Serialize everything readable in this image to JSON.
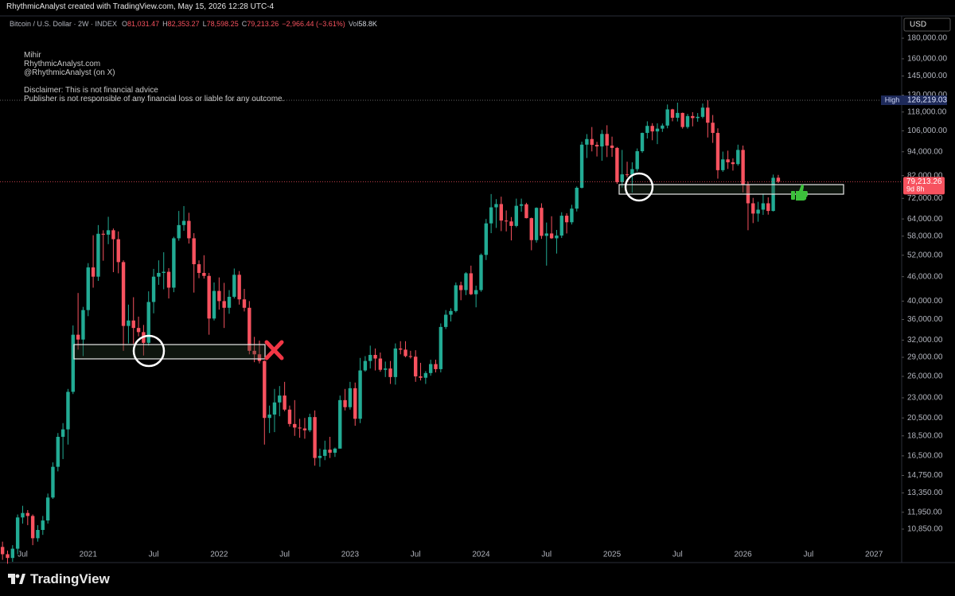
{
  "header": "RhythmicAnalyst created with TradingView.com, May 15, 2026 12:28 UTC-4",
  "chart_data": {
    "type": "candlestick",
    "symbol": "Bitcoin / U.S. Dollar · 2W · INDEX",
    "ohlc": [
      {
        "key": "O",
        "value": "81,031.47"
      },
      {
        "key": "H",
        "value": "82,353.27"
      },
      {
        "key": "L",
        "value": "78,598.25"
      },
      {
        "key": "C",
        "value": "79,213.26"
      }
    ],
    "change": "−2,966.44 (−3.61%)",
    "volume": {
      "key": "Vol",
      "value": "58.8K"
    },
    "author": [
      "Mihir",
      "RhythmicAnalyst.com",
      "@RhythmicAnalyst (on X)"
    ],
    "disclaimer": [
      "Disclaimer: This is not financial advice",
      "Publisher is not responsible of any financial loss or liable for any outcome."
    ],
    "currency": "USD",
    "up_color": "#22ab94",
    "down_color": "#f7525f",
    "log_scale": true,
    "ylim": [
      9770,
      204500
    ],
    "yticks": [
      {
        "value": 180000,
        "label": "180,000.00"
      },
      {
        "value": 160000,
        "label": "160,000.00"
      },
      {
        "value": 145000,
        "label": "145,000.00"
      },
      {
        "value": 130000,
        "label": "130,000.00"
      },
      {
        "value": 118000,
        "label": "118,000.00"
      },
      {
        "value": 106000,
        "label": "106,000.00"
      },
      {
        "value": 94000,
        "label": "94,000.00"
      },
      {
        "value": 82000,
        "label": "82,000.00"
      },
      {
        "value": 72000,
        "label": "72,000.00"
      },
      {
        "value": 64000,
        "label": "64,000.00"
      },
      {
        "value": 58000,
        "label": "58,000.00"
      },
      {
        "value": 52000,
        "label": "52,000.00"
      },
      {
        "value": 46000,
        "label": "46,000.00"
      },
      {
        "value": 40000,
        "label": "40,000.00"
      },
      {
        "value": 36000,
        "label": "36,000.00"
      },
      {
        "value": 32000,
        "label": "32,000.00"
      },
      {
        "value": 29000,
        "label": "29,000.00"
      },
      {
        "value": 26000,
        "label": "26,000.00"
      },
      {
        "value": 23000,
        "label": "23,000.00"
      },
      {
        "value": 20500,
        "label": "20,500.00"
      },
      {
        "value": 18500,
        "label": "18,500.00"
      },
      {
        "value": 16500,
        "label": "16,500.00"
      },
      {
        "value": 14750,
        "label": "14,750.00"
      },
      {
        "value": 13350,
        "label": "13,350.00"
      },
      {
        "value": 11950,
        "label": "11,950.00"
      },
      {
        "value": 10850,
        "label": "10,850.00"
      }
    ],
    "high_marker": {
      "label": "High",
      "value_label": "126,219.03"
    },
    "last_price": {
      "value_label": "79,213.26",
      "countdown": "9d 8h"
    },
    "categories": [
      null,
      null,
      null,
      null,
      "Jul",
      null,
      null,
      null,
      null,
      null,
      null,
      null,
      null,
      null,
      null,
      null,
      null,
      "2021",
      null,
      null,
      null,
      null,
      null,
      null,
      null,
      null,
      null,
      null,
      null,
      null,
      "Jul",
      null,
      null,
      null,
      null,
      null,
      null,
      null,
      null,
      null,
      null,
      null,
      null,
      "2022",
      null,
      null,
      null,
      null,
      null,
      null,
      null,
      null,
      null,
      null,
      null,
      null,
      "Jul",
      null,
      null,
      null,
      null,
      null,
      null,
      null,
      null,
      null,
      null,
      null,
      null,
      "2023",
      null,
      null,
      null,
      null,
      null,
      null,
      null,
      null,
      null,
      null,
      null,
      null,
      "Jul",
      null,
      null,
      null,
      null,
      null,
      null,
      null,
      null,
      null,
      null,
      null,
      null,
      "2024",
      null,
      null,
      null,
      null,
      null,
      null,
      null,
      null,
      null,
      null,
      null,
      null,
      "Jul",
      null,
      null,
      null,
      null,
      null,
      null,
      null,
      null,
      null,
      null,
      null,
      null,
      "2025",
      null,
      null,
      null,
      null,
      null,
      null,
      null,
      null,
      null,
      null,
      null,
      null,
      "Jul",
      null,
      null,
      null,
      null,
      null,
      null,
      null,
      null,
      null,
      null,
      null,
      null,
      "2026",
      null,
      null,
      null,
      null,
      null,
      null,
      null,
      null,
      null,
      null,
      null,
      null,
      "Jul",
      null,
      null,
      null,
      null,
      null,
      null,
      null,
      null,
      null,
      null,
      null,
      null,
      "2027",
      null,
      null,
      null,
      null,
      null
    ],
    "candles": [
      [
        9800,
        10100,
        9100,
        9400
      ],
      [
        9400,
        9600,
        8900,
        9200
      ],
      [
        9200,
        9900,
        9000,
        9700
      ],
      [
        9700,
        11800,
        9400,
        11600
      ],
      [
        11600,
        12400,
        11200,
        11900
      ],
      [
        11900,
        12100,
        11100,
        11700
      ],
      [
        11700,
        11800,
        9900,
        10300
      ],
      [
        10300,
        11100,
        10100,
        10800
      ],
      [
        10800,
        11700,
        10500,
        11400
      ],
      [
        11400,
        13300,
        11200,
        13000
      ],
      [
        13000,
        15900,
        12900,
        15500
      ],
      [
        15500,
        18800,
        15100,
        18400
      ],
      [
        18400,
        19900,
        16200,
        19200
      ],
      [
        19200,
        24200,
        17600,
        23800
      ],
      [
        23800,
        34800,
        23500,
        33000
      ],
      [
        33000,
        41900,
        30300,
        32100
      ],
      [
        32100,
        38700,
        29200,
        38000
      ],
      [
        38000,
        49700,
        36700,
        48500
      ],
      [
        48500,
        58300,
        43200,
        46000
      ],
      [
        46000,
        61800,
        44900,
        58800
      ],
      [
        58800,
        60000,
        50400,
        58500
      ],
      [
        58500,
        64800,
        55400,
        60000
      ],
      [
        60000,
        60600,
        47200,
        57000
      ],
      [
        57000,
        59600,
        46900,
        50000
      ],
      [
        50000,
        50500,
        30100,
        34700
      ],
      [
        34700,
        39200,
        31400,
        35800
      ],
      [
        35800,
        40900,
        31300,
        34300
      ],
      [
        34300,
        36600,
        32700,
        33500
      ],
      [
        33500,
        34900,
        29300,
        31500
      ],
      [
        31500,
        42300,
        31000,
        39800
      ],
      [
        39800,
        48100,
        37300,
        46000
      ],
      [
        46000,
        50500,
        43900,
        47000
      ],
      [
        47000,
        52900,
        42800,
        47300
      ],
      [
        47300,
        48300,
        40600,
        43200
      ],
      [
        43200,
        57800,
        42100,
        57300
      ],
      [
        57300,
        67000,
        56500,
        61800
      ],
      [
        61800,
        68900,
        59800,
        63300
      ],
      [
        63300,
        66300,
        55600,
        57300
      ],
      [
        57300,
        59000,
        42000,
        49400
      ],
      [
        49400,
        50500,
        45600,
        47000
      ],
      [
        47000,
        52000,
        45500,
        46200
      ],
      [
        46200,
        47000,
        33000,
        36200
      ],
      [
        36200,
        44500,
        35800,
        42400
      ],
      [
        42400,
        45800,
        38100,
        40000
      ],
      [
        40000,
        44400,
        34300,
        38500
      ],
      [
        38500,
        42600,
        37200,
        41000
      ],
      [
        41000,
        48200,
        40600,
        46500
      ],
      [
        46500,
        47500,
        39200,
        40400
      ],
      [
        40400,
        42900,
        37700,
        38500
      ],
      [
        38500,
        40000,
        29500,
        30100
      ],
      [
        30100,
        32600,
        28200,
        29500
      ],
      [
        29500,
        31900,
        28000,
        28400
      ],
      [
        28400,
        28500,
        17600,
        20500
      ],
      [
        20500,
        22000,
        18800,
        20900
      ],
      [
        20900,
        24200,
        18900,
        22400
      ],
      [
        22400,
        24600,
        20700,
        23300
      ],
      [
        23300,
        25200,
        21300,
        21500
      ],
      [
        21500,
        22000,
        19500,
        19800
      ],
      [
        19800,
        22700,
        18500,
        19400
      ],
      [
        19400,
        20400,
        18300,
        19300
      ],
      [
        19300,
        20500,
        18200,
        19100
      ],
      [
        19100,
        21000,
        18900,
        20600
      ],
      [
        20600,
        21400,
        15600,
        16300
      ],
      [
        16300,
        17200,
        15500,
        16500
      ],
      [
        16500,
        18000,
        16100,
        17100
      ],
      [
        17100,
        18400,
        16300,
        16800
      ],
      [
        16800,
        17300,
        16400,
        17200
      ],
      [
        17200,
        23300,
        17200,
        22700
      ],
      [
        22700,
        24200,
        21400,
        21800
      ],
      [
        21800,
        25200,
        21500,
        24300
      ],
      [
        24300,
        25100,
        19600,
        20400
      ],
      [
        20400,
        28900,
        19900,
        26900
      ],
      [
        26900,
        29200,
        26700,
        28400
      ],
      [
        28400,
        31000,
        27200,
        29400
      ],
      [
        29400,
        30500,
        26900,
        28800
      ],
      [
        28800,
        29800,
        26700,
        27000
      ],
      [
        27000,
        28300,
        25900,
        27200
      ],
      [
        27200,
        28400,
        24900,
        25900
      ],
      [
        25900,
        31400,
        24800,
        30500
      ],
      [
        30500,
        31800,
        29500,
        30300
      ],
      [
        30300,
        31800,
        29000,
        29200
      ],
      [
        29200,
        30100,
        28800,
        29100
      ],
      [
        29100,
        30200,
        25200,
        26000
      ],
      [
        26000,
        28100,
        25400,
        25800
      ],
      [
        25800,
        26800,
        24900,
        26500
      ],
      [
        26500,
        28600,
        26100,
        27900
      ],
      [
        27900,
        28600,
        26600,
        27100
      ],
      [
        27100,
        35200,
        26600,
        34500
      ],
      [
        34500,
        38000,
        34100,
        37000
      ],
      [
        37000,
        38400,
        35600,
        37800
      ],
      [
        37800,
        44500,
        37500,
        43800
      ],
      [
        43800,
        44700,
        40200,
        42600
      ],
      [
        42600,
        47200,
        41400,
        46900
      ],
      [
        46900,
        49000,
        41400,
        41600
      ],
      [
        41600,
        43700,
        38600,
        42600
      ],
      [
        42600,
        52500,
        42200,
        52100
      ],
      [
        52100,
        64000,
        50600,
        62400
      ],
      [
        62400,
        73800,
        59000,
        68400
      ],
      [
        68400,
        71700,
        60800,
        69700
      ],
      [
        69700,
        72700,
        59700,
        63400
      ],
      [
        63400,
        67200,
        59600,
        63100
      ],
      [
        63100,
        64700,
        56600,
        61500
      ],
      [
        61500,
        71900,
        61000,
        69000
      ],
      [
        69000,
        71900,
        66700,
        69600
      ],
      [
        69600,
        70200,
        64200,
        64300
      ],
      [
        64300,
        64500,
        53500,
        56700
      ],
      [
        56700,
        68400,
        55900,
        68200
      ],
      [
        68200,
        70000,
        57100,
        58100
      ],
      [
        58100,
        62700,
        49000,
        58900
      ],
      [
        58900,
        65000,
        57100,
        57300
      ],
      [
        57300,
        60100,
        52500,
        58200
      ],
      [
        58200,
        66500,
        57400,
        65200
      ],
      [
        65200,
        66100,
        58900,
        62800
      ],
      [
        62800,
        69400,
        62000,
        67900
      ],
      [
        67900,
        77100,
        66800,
        76500
      ],
      [
        76500,
        99600,
        76200,
        97900
      ],
      [
        97900,
        104000,
        90700,
        101100
      ],
      [
        101100,
        108300,
        94200,
        97800
      ],
      [
        97800,
        99500,
        91500,
        96900
      ],
      [
        96900,
        106500,
        89300,
        104100
      ],
      [
        104100,
        109400,
        91200,
        97400
      ],
      [
        97400,
        102500,
        91300,
        96100
      ],
      [
        96100,
        96600,
        78200,
        79000
      ],
      [
        79000,
        95000,
        76600,
        82600
      ],
      [
        82600,
        88800,
        81200,
        82500
      ],
      [
        82500,
        88500,
        74400,
        85100
      ],
      [
        85100,
        95800,
        83900,
        94300
      ],
      [
        94300,
        104900,
        93400,
        104700
      ],
      [
        104700,
        111900,
        101400,
        109000
      ],
      [
        109000,
        110700,
        100400,
        105600
      ],
      [
        105600,
        110600,
        98200,
        107300
      ],
      [
        107300,
        110500,
        105300,
        109200
      ],
      [
        109200,
        123200,
        107500,
        119800
      ],
      [
        119800,
        120200,
        111900,
        114200
      ],
      [
        114200,
        124500,
        111800,
        117400
      ],
      [
        117400,
        117600,
        107300,
        108300
      ],
      [
        108300,
        116700,
        107300,
        115300
      ],
      [
        115300,
        117900,
        108700,
        114000
      ],
      [
        114000,
        117300,
        111600,
        114800
      ],
      [
        114800,
        123900,
        113800,
        121000
      ],
      [
        121000,
        126219.03,
        102000,
        111000
      ],
      [
        111000,
        116000,
        98900,
        104700
      ],
      [
        104700,
        107500,
        80600,
        84600
      ],
      [
        84600,
        94100,
        83800,
        90000
      ],
      [
        90000,
        94600,
        85200,
        88500
      ],
      [
        88500,
        90500,
        84400,
        87600
      ],
      [
        87600,
        97900,
        86800,
        95000
      ],
      [
        95000,
        97400,
        74500,
        78000
      ],
      [
        78000,
        79300,
        60000,
        70000
      ],
      [
        70000,
        72200,
        62500,
        66000
      ],
      [
        66000,
        70600,
        63000,
        67500
      ],
      [
        67500,
        74000,
        65500,
        70000
      ],
      [
        70000,
        72400,
        65600,
        67000
      ],
      [
        67000,
        82500,
        66800,
        81000
      ],
      [
        81031.47,
        82353.27,
        78598.25,
        79213.26
      ],
      null,
      null,
      null,
      null,
      null,
      null,
      null,
      null,
      null,
      null,
      null,
      null,
      null,
      null,
      null,
      null,
      null,
      null,
      null,
      null,
      null,
      null,
      null,
      null
    ]
  },
  "footer": {
    "logo": "TradingView"
  }
}
